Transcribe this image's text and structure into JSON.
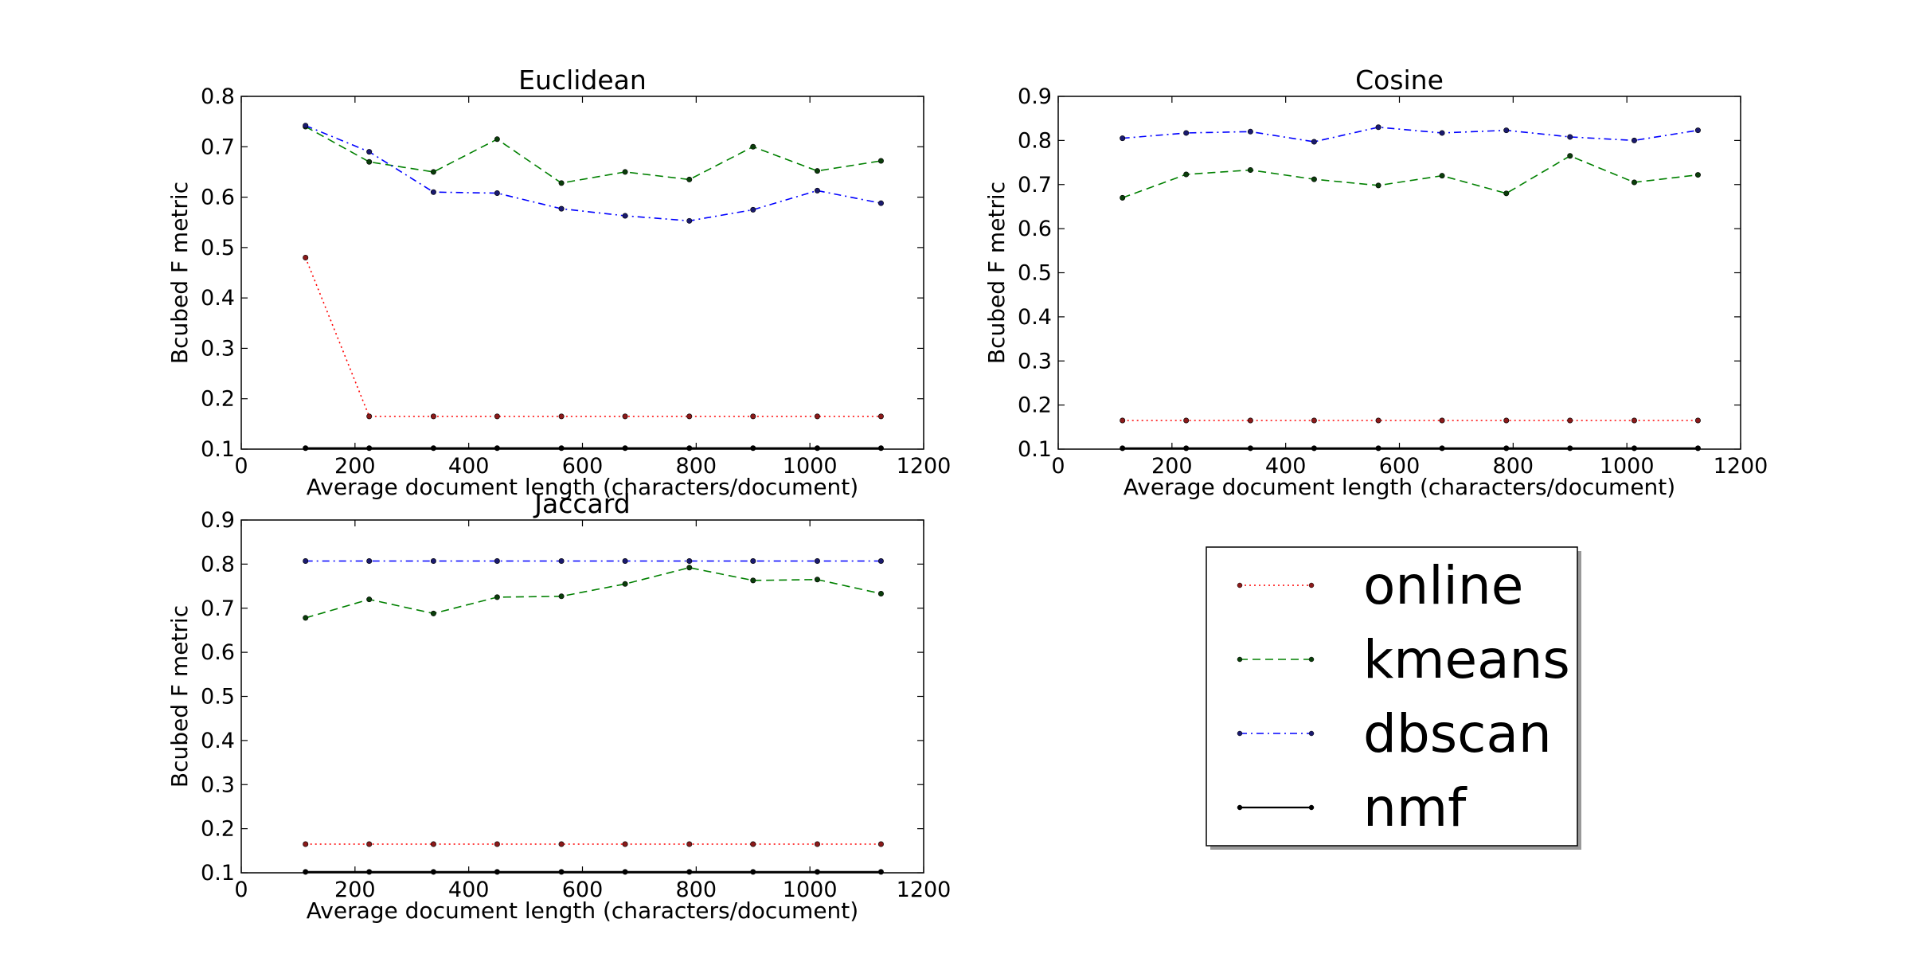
{
  "chart_data": [
    {
      "type": "line",
      "title": "Euclidean",
      "xlabel": "Average document length (characters/document)",
      "ylabel": "Bcubed F metric",
      "xlim": [
        0,
        1200
      ],
      "ylim": [
        0.1,
        0.8
      ],
      "xticks": [
        "0",
        "200",
        "400",
        "600",
        "800",
        "1000",
        "1200"
      ],
      "yticks": [
        "0.1",
        "0.2",
        "0.3",
        "0.4",
        "0.5",
        "0.6",
        "0.7",
        "0.8"
      ],
      "grid": false,
      "x": [
        113,
        225,
        338,
        450,
        563,
        675,
        788,
        900,
        1013,
        1125
      ],
      "series": [
        {
          "name": "online",
          "values": [
            0.48,
            0.165,
            0.165,
            0.165,
            0.165,
            0.165,
            0.165,
            0.165,
            0.165,
            0.165
          ]
        },
        {
          "name": "kmeans",
          "values": [
            0.74,
            0.67,
            0.65,
            0.715,
            0.628,
            0.65,
            0.635,
            0.7,
            0.652,
            0.672
          ]
        },
        {
          "name": "dbscan",
          "values": [
            0.742,
            0.69,
            0.61,
            0.608,
            0.577,
            0.563,
            0.553,
            0.575,
            0.613,
            0.588
          ]
        },
        {
          "name": "nmf",
          "values": [
            0.102,
            0.102,
            0.102,
            0.102,
            0.102,
            0.102,
            0.102,
            0.102,
            0.102,
            0.102
          ]
        }
      ]
    },
    {
      "type": "line",
      "title": "Cosine",
      "xlabel": "Average document length (characters/document)",
      "ylabel": "Bcubed F metric",
      "xlim": [
        0,
        1200
      ],
      "ylim": [
        0.1,
        0.9
      ],
      "xticks": [
        "0",
        "200",
        "400",
        "600",
        "800",
        "1000",
        "1200"
      ],
      "yticks": [
        "0.1",
        "0.2",
        "0.3",
        "0.4",
        "0.5",
        "0.6",
        "0.7",
        "0.8",
        "0.9"
      ],
      "grid": false,
      "x": [
        113,
        225,
        338,
        450,
        563,
        675,
        788,
        900,
        1013,
        1125
      ],
      "series": [
        {
          "name": "online",
          "values": [
            0.165,
            0.165,
            0.165,
            0.165,
            0.165,
            0.165,
            0.165,
            0.165,
            0.165,
            0.165
          ]
        },
        {
          "name": "kmeans",
          "values": [
            0.67,
            0.723,
            0.733,
            0.712,
            0.698,
            0.72,
            0.68,
            0.765,
            0.705,
            0.722
          ]
        },
        {
          "name": "dbscan",
          "values": [
            0.805,
            0.817,
            0.82,
            0.797,
            0.83,
            0.817,
            0.823,
            0.808,
            0.8,
            0.823
          ]
        },
        {
          "name": "nmf",
          "values": [
            0.102,
            0.102,
            0.102,
            0.102,
            0.102,
            0.102,
            0.102,
            0.102,
            0.102,
            0.102
          ]
        }
      ]
    },
    {
      "type": "line",
      "title": "Jaccard",
      "xlabel": "Average document length (characters/document)",
      "ylabel": "Bcubed F metric",
      "xlim": [
        0,
        1200
      ],
      "ylim": [
        0.1,
        0.9
      ],
      "xticks": [
        "0",
        "200",
        "400",
        "600",
        "800",
        "1000",
        "1200"
      ],
      "yticks": [
        "0.1",
        "0.2",
        "0.3",
        "0.4",
        "0.5",
        "0.6",
        "0.7",
        "0.8",
        "0.9"
      ],
      "grid": false,
      "x": [
        113,
        225,
        338,
        450,
        563,
        675,
        788,
        900,
        1013,
        1125
      ],
      "series": [
        {
          "name": "online",
          "values": [
            0.165,
            0.165,
            0.165,
            0.165,
            0.165,
            0.165,
            0.165,
            0.165,
            0.165,
            0.165
          ]
        },
        {
          "name": "kmeans",
          "values": [
            0.678,
            0.72,
            0.688,
            0.725,
            0.727,
            0.755,
            0.792,
            0.763,
            0.765,
            0.733
          ]
        },
        {
          "name": "dbscan",
          "values": [
            0.807,
            0.807,
            0.807,
            0.807,
            0.807,
            0.807,
            0.807,
            0.807,
            0.807,
            0.807
          ]
        },
        {
          "name": "nmf",
          "values": [
            0.102,
            0.102,
            0.102,
            0.102,
            0.102,
            0.102,
            0.102,
            0.102,
            0.102,
            0.102
          ]
        }
      ]
    }
  ],
  "legend": {
    "placement": "bottom-right",
    "entries": [
      {
        "name": "online",
        "color": "#ff0000",
        "style": "dotted",
        "marker_color": "#8b1a1a"
      },
      {
        "name": "kmeans",
        "color": "#008000",
        "style": "dashed",
        "marker_color": "#0a3d0a"
      },
      {
        "name": "dbscan",
        "color": "#0000ff",
        "style": "dashdot",
        "marker_color": "#1a1a6e"
      },
      {
        "name": "nmf",
        "color": "#000000",
        "style": "solid",
        "marker_color": "#000000"
      }
    ]
  }
}
